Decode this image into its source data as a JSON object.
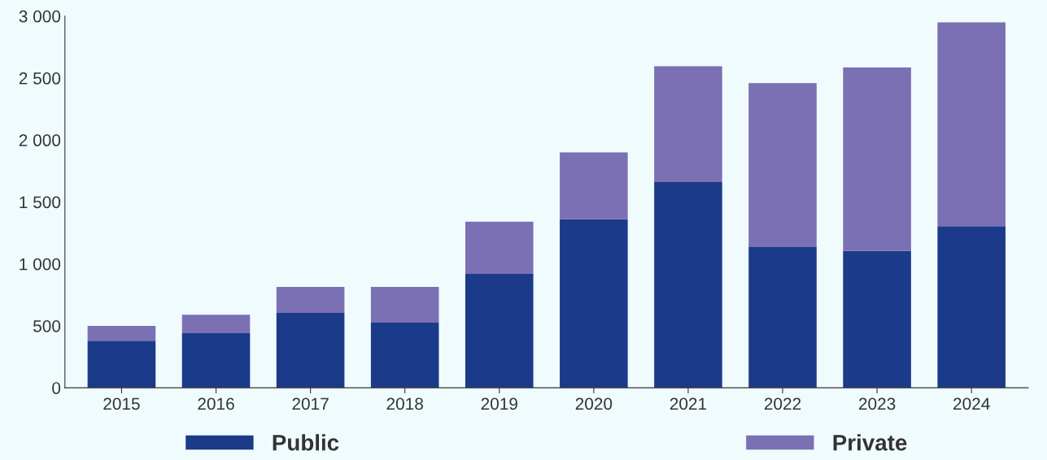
{
  "chart_data": {
    "type": "bar",
    "stacked": true,
    "categories": [
      "2015",
      "2016",
      "2017",
      "2018",
      "2019",
      "2020",
      "2021",
      "2022",
      "2023",
      "2024"
    ],
    "series": [
      {
        "name": "Public",
        "color": "#1b3a8a",
        "values": [
          380,
          440,
          605,
          525,
          920,
          1360,
          1660,
          1135,
          1105,
          1305
        ]
      },
      {
        "name": "Private",
        "color": "#7b70b3",
        "values": [
          120,
          150,
          210,
          290,
          420,
          540,
          935,
          1325,
          1480,
          1645
        ]
      }
    ],
    "ylim": [
      0,
      3000
    ],
    "yticks": [
      0,
      500,
      {
        "value": 1000,
        "label": "1 000"
      },
      {
        "value": 1500,
        "label": "1 500"
      },
      {
        "value": 2000,
        "label": "2 000"
      },
      {
        "value": 2500,
        "label": "2 500"
      },
      {
        "value": 3000,
        "label": "3 000"
      }
    ],
    "grid": false,
    "legend": "bottom"
  }
}
